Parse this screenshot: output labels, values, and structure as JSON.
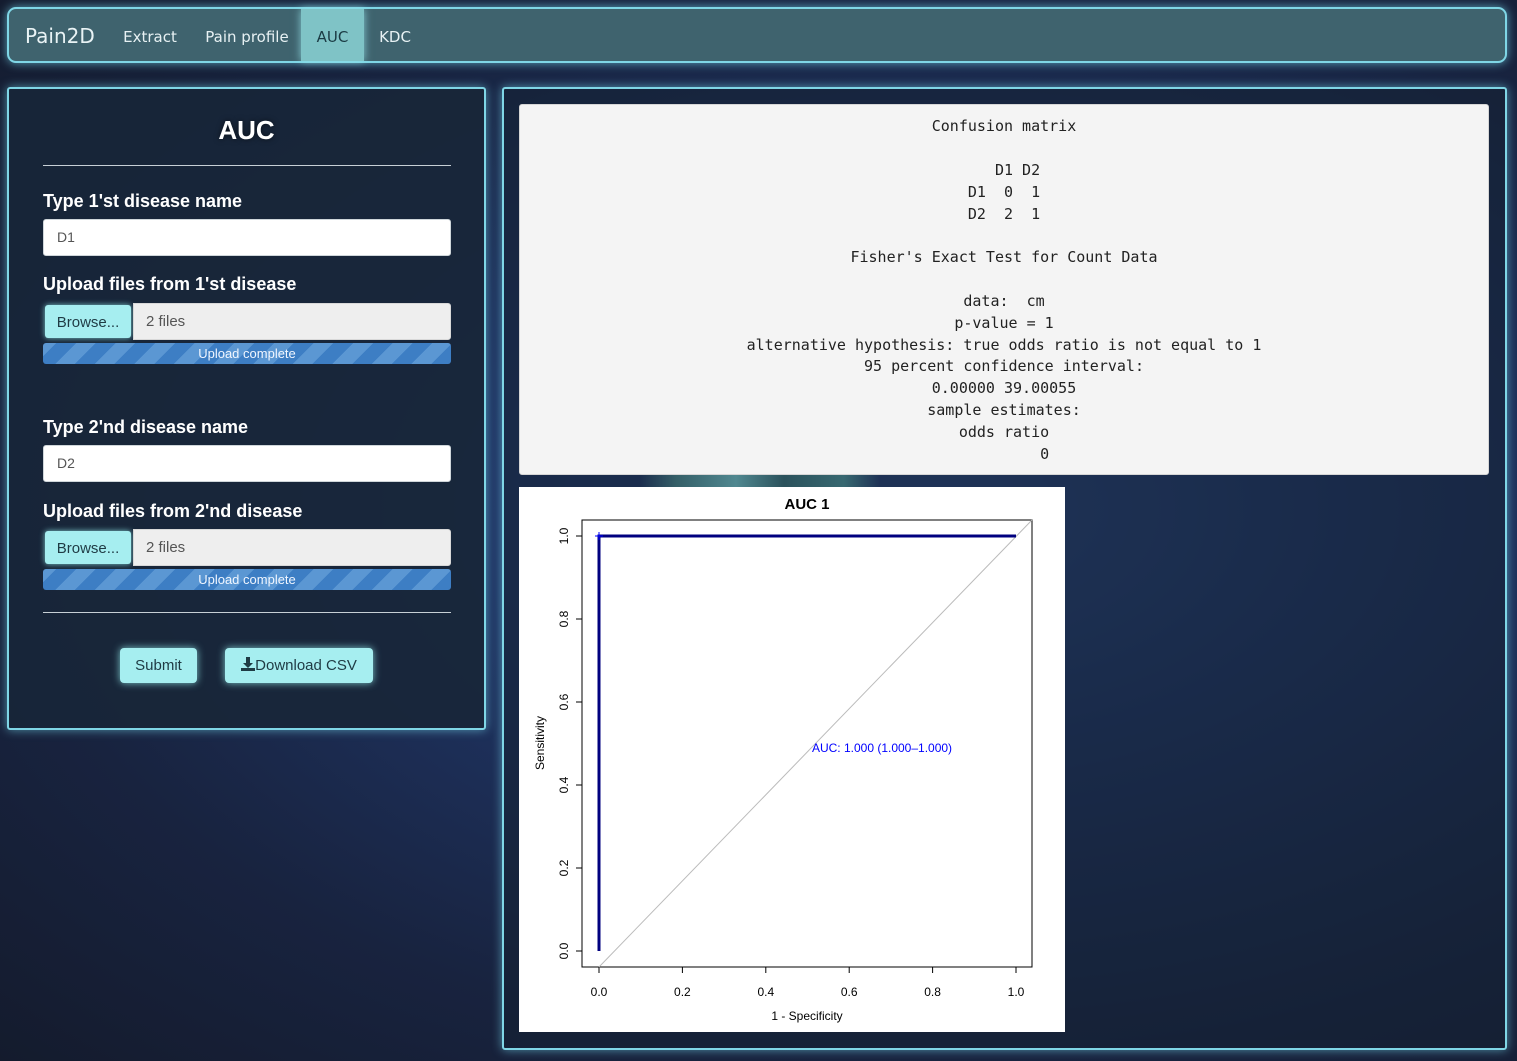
{
  "navbar": {
    "brand": "Pain2D",
    "items": [
      {
        "label": "Extract",
        "active": false
      },
      {
        "label": "Pain profile",
        "active": false
      },
      {
        "label": "AUC",
        "active": true
      },
      {
        "label": "KDC",
        "active": false
      }
    ]
  },
  "form": {
    "title": "AUC",
    "disease1_label": "Type 1'st disease name",
    "disease1_value": "D1",
    "upload1_label": "Upload files from 1'st disease",
    "browse1_label": "Browse...",
    "upload1_files": "2 files",
    "upload1_status": "Upload complete",
    "disease2_label": "Type 2'nd disease name",
    "disease2_value": "D2",
    "upload2_label": "Upload files from 2'nd disease",
    "browse2_label": "Browse...",
    "upload2_files": "2 files",
    "upload2_status": "Upload complete",
    "submit_label": "Submit",
    "download_label": "Download CSV",
    "upload1_progress": 1.0,
    "upload2_progress": 1.0
  },
  "output": {
    "lines": [
      "Confusion matrix",
      "",
      "   D1 D2",
      "D1  0  1",
      "D2  2  1",
      "",
      "Fisher's Exact Test for Count Data",
      "",
      "data:  cm",
      "p-value = 1",
      "alternative hypothesis: true odds ratio is not equal to 1",
      "95 percent confidence interval:",
      "0.00000 39.00055",
      "sample estimates:",
      "odds ratio",
      "         0"
    ]
  },
  "chart_data": {
    "type": "line",
    "title": "AUC 1",
    "xlabel": "1 - Specificity",
    "ylabel": "Sensitivity",
    "xlim": [
      0,
      1
    ],
    "ylim": [
      0,
      1
    ],
    "x_ticks": [
      "0.0",
      "0.2",
      "0.4",
      "0.6",
      "0.8",
      "1.0"
    ],
    "y_ticks": [
      "0.0",
      "0.2",
      "0.4",
      "0.6",
      "0.8",
      "1.0"
    ],
    "series": [
      {
        "x": [
          0,
          0,
          1
        ],
        "y": [
          0,
          1,
          1
        ],
        "color": "#00007f"
      },
      {
        "x": [
          0,
          1
        ],
        "y": [
          0,
          1
        ],
        "color": "#bbbbbb"
      }
    ],
    "annotation": "AUC: 1.000 (1.000–1.000)",
    "annotation_color": "#0000ff",
    "grid": false
  }
}
